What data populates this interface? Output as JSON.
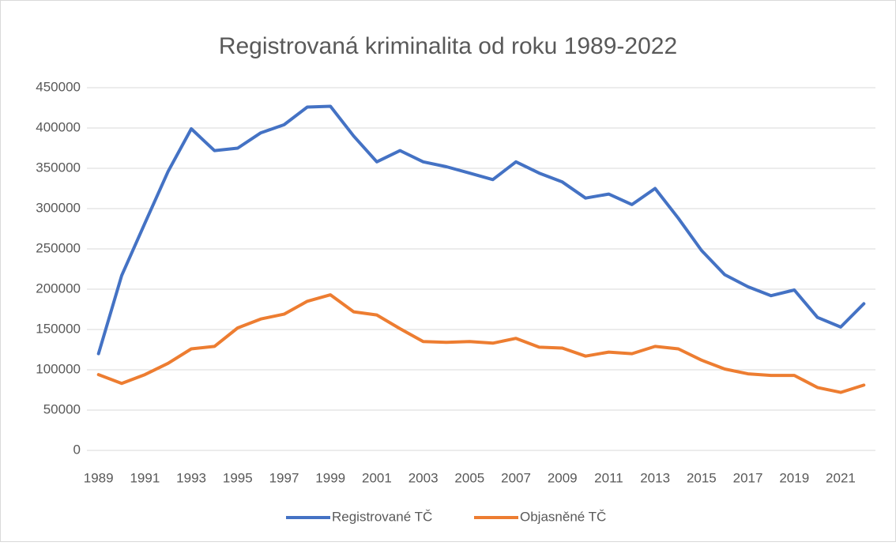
{
  "chart_data": {
    "type": "line",
    "title": "Registrovaná kriminalita od roku 1989-2022",
    "categories": [
      "1989",
      null,
      "1991",
      null,
      "1993",
      null,
      "1995",
      null,
      "1997",
      null,
      "1999",
      null,
      "2001",
      null,
      "2003",
      null,
      "2005",
      null,
      "2007",
      null,
      "2009",
      null,
      "2011",
      null,
      "2013",
      null,
      "2015",
      null,
      "2017",
      null,
      "2019",
      null,
      "2021",
      null
    ],
    "series": [
      {
        "name": "Registrované TČ",
        "color": "#4472c4",
        "values": [
          120000,
          217000,
          282000,
          346000,
          399000,
          372000,
          375000,
          394000,
          404000,
          426000,
          427000,
          390000,
          358000,
          372000,
          358000,
          352000,
          344000,
          336000,
          358000,
          344000,
          333000,
          313000,
          318000,
          305000,
          325000,
          288000,
          248000,
          218000,
          203000,
          192000,
          199000,
          165000,
          153000,
          182000
        ]
      },
      {
        "name": "Objasněné TČ",
        "color": "#ed7d31",
        "values": [
          94000,
          83000,
          94000,
          108000,
          126000,
          129000,
          152000,
          163000,
          169000,
          185000,
          193000,
          172000,
          168000,
          151000,
          135000,
          134000,
          135000,
          133000,
          139000,
          128000,
          127000,
          117000,
          122000,
          120000,
          129000,
          126000,
          112000,
          101000,
          95000,
          93000,
          93000,
          78000,
          72000,
          81000
        ]
      }
    ],
    "ylim": [
      0,
      450000
    ],
    "yticks": [
      0,
      50000,
      100000,
      150000,
      200000,
      250000,
      300000,
      350000,
      400000,
      450000
    ],
    "grid": true,
    "legend": "bottom"
  }
}
